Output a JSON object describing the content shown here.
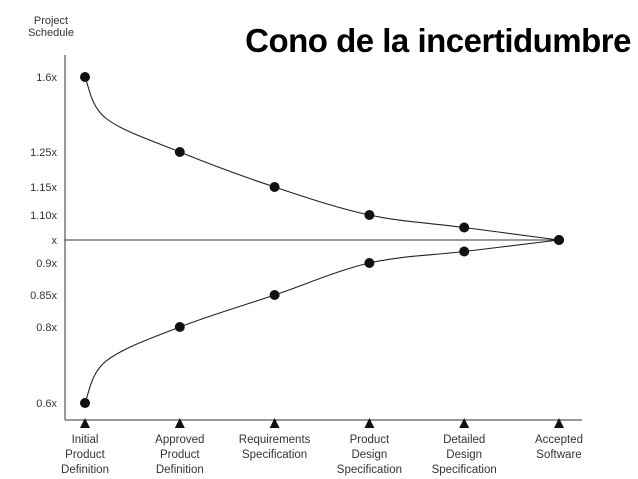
{
  "chart_data": {
    "type": "line",
    "title": "Cono de la incertidumbre",
    "ylabel": [
      "Project",
      "Schedule"
    ],
    "xlabel": "",
    "categories": [
      [
        "Initial",
        "Product",
        "Definition"
      ],
      [
        "Approved",
        "Product",
        "Definition"
      ],
      [
        "Requirements",
        "Specification"
      ],
      [
        "Product",
        "Design",
        "Specification"
      ],
      [
        "Detailed",
        "Design",
        "Specification"
      ],
      [
        "Accepted",
        "Software"
      ]
    ],
    "y_ticks": [
      {
        "label": "1.6x",
        "value": 1.6
      },
      {
        "label": "1.25x",
        "value": 1.25
      },
      {
        "label": "1.15x",
        "value": 1.15
      },
      {
        "label": "1.10x",
        "value": 1.1
      },
      {
        "label": "x",
        "value": 1.0
      },
      {
        "label": "0.9x",
        "value": 0.9
      },
      {
        "label": "0.85x",
        "value": 0.85
      },
      {
        "label": "0.8x",
        "value": 0.8
      },
      {
        "label": "0.6x",
        "value": 0.6
      }
    ],
    "y_scale": "categorical-spaced",
    "series": [
      {
        "values": [
          1.6,
          1.25,
          1.15,
          1.1,
          1.05,
          1.0
        ]
      },
      {
        "values": [
          0.6,
          0.8,
          0.85,
          0.9,
          0.95,
          1.0
        ]
      }
    ],
    "reference_line": 1.0,
    "grid": false,
    "colors": {
      "line": "#222222",
      "point": "#111111",
      "axis": "#333333",
      "text": "#333333",
      "title": "#000000"
    }
  }
}
